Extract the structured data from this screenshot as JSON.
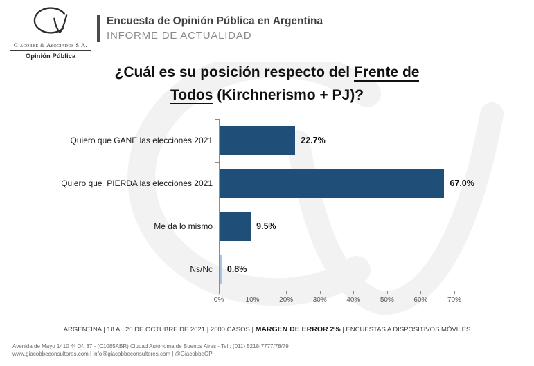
{
  "logo": {
    "company": "Giacobbe & Asociados S.A.",
    "tagline": "Opinión Pública"
  },
  "header": {
    "line1": "Encuesta de Opinión Pública en Argentina",
    "line2": "INFORME DE ACTUALIDAD"
  },
  "title": {
    "pre": "¿Cuál es su posición respecto del ",
    "underlined_line1": "Frente de",
    "underlined_line2": "Todos",
    "post": " (Kirchnerismo + PJ)?"
  },
  "chart_data": {
    "type": "bar",
    "orientation": "horizontal",
    "title": "¿Cuál es su posición respecto del Frente de Todos (Kirchnerismo + PJ)?",
    "categories": [
      "Quiero que GANE las elecciones 2021",
      "Quiero que  PIERDA las elecciones 2021",
      "Me da lo mismo",
      "Ns/Nc"
    ],
    "values": [
      22.7,
      67.0,
      9.5,
      0.8
    ],
    "value_labels": [
      "22.7%",
      "67.0%",
      "9.5%",
      "0.8%"
    ],
    "bar_colors": [
      "#1F4E79",
      "#1F4E79",
      "#1F4E79",
      "#A8C6E2"
    ],
    "xlim": [
      0,
      70
    ],
    "x_tick_values": [
      0,
      10,
      20,
      30,
      40,
      50,
      60,
      70
    ],
    "x_tick_labels": [
      "0%",
      "10%",
      "20%",
      "30%",
      "40%",
      "50%",
      "60%",
      "70%"
    ],
    "grid": false,
    "legend": "none"
  },
  "footer": {
    "pre": "ARGENTINA | 18 AL 20 DE OCTUBRE DE 2021 | 2500 CASOS | ",
    "bold": "MARGEN DE ERROR 2%",
    "post": " | ENCUESTAS A DISPOSITIVOS MÓVILES"
  },
  "contact": {
    "address": "Avenida de Mayo 1410 4º Of. 37 - (C1085ABR) Ciudad Autónoma de Buenos Aires - Tel.: (011) 5218-7777/78/79",
    "web": "www.giacobbeconsultores.com | info@giacobbeconsultores.com | @GiacobbeOP"
  },
  "colors": {
    "bar_primary": "#1F4E79",
    "bar_light": "#A8C6E2",
    "axis": "#8C8C8C",
    "watermark": "#F2F2F2"
  }
}
